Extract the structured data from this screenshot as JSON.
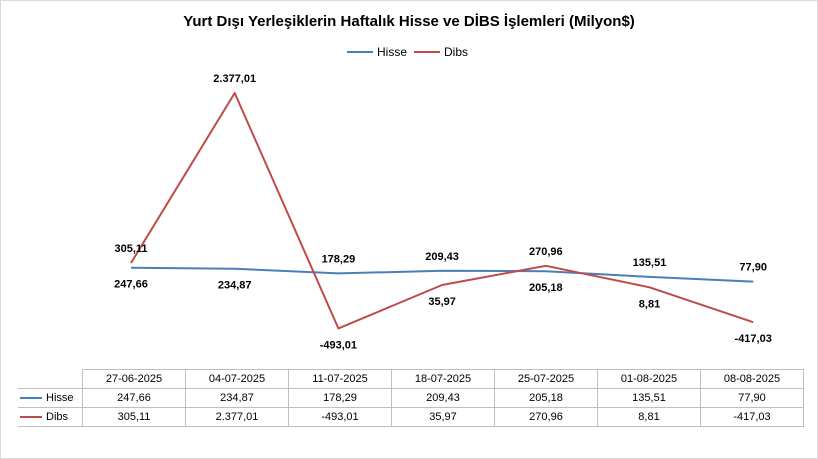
{
  "chart_data": {
    "type": "line",
    "title": "Yurt Dışı Yerleşiklerin Haftalık Hisse ve DİBS İşlemleri (Milyon$)",
    "categories": [
      "27-06-2025",
      "04-07-2025",
      "11-07-2025",
      "18-07-2025",
      "25-07-2025",
      "01-08-2025",
      "08-08-2025"
    ],
    "ylim": [
      -600,
      2500
    ],
    "legend_position": "top",
    "grid": false,
    "series": [
      {
        "name": "Hisse",
        "color": "#4a7ebb",
        "values": [
          247.66,
          234.87,
          178.29,
          209.43,
          205.18,
          135.51,
          77.9
        ],
        "labels": [
          "247,66",
          "234,87",
          "178,29",
          "209,43",
          "205,18",
          "135,51",
          "77,90"
        ],
        "label_side": [
          "below",
          "below",
          "above",
          "above",
          "below",
          "above",
          "above"
        ]
      },
      {
        "name": "Dibs",
        "color": "#be4b48",
        "values": [
          305.11,
          2377.01,
          -493.01,
          35.97,
          270.96,
          8.81,
          -417.03
        ],
        "labels": [
          "305,11",
          "2.377,01",
          "-493,01",
          "35,97",
          "270,96",
          "8,81",
          "-417,03"
        ],
        "label_side": [
          "above",
          "above",
          "below",
          "below",
          "above",
          "below",
          "below"
        ]
      }
    ]
  }
}
